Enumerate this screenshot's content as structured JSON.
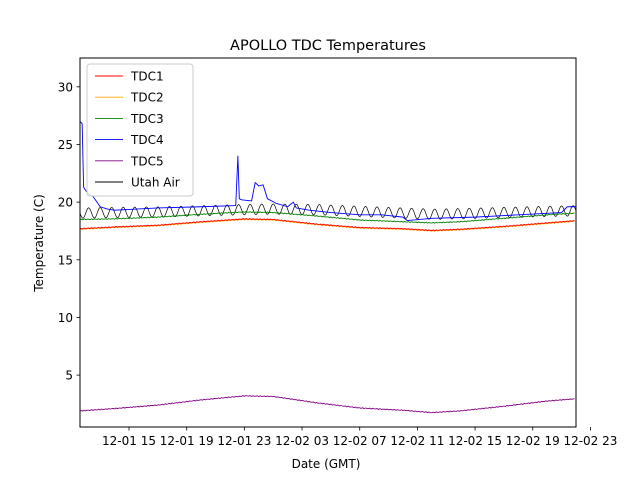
{
  "chart_data": {
    "type": "line",
    "title": "APOLLO TDC Temperatures",
    "xlabel": "Date (GMT)",
    "ylabel": "Temperature (C)",
    "xlim": [
      11.6,
      46.0
    ],
    "ylim": [
      0.5,
      32.5
    ],
    "x_unit": "hours since 2016-12-01 00:00 GMT",
    "x_ticks": [
      {
        "value": 15,
        "label": "12-01 15"
      },
      {
        "value": 19,
        "label": "12-01 19"
      },
      {
        "value": 23,
        "label": "12-01 23"
      },
      {
        "value": 27,
        "label": "12-02 03"
      },
      {
        "value": 31,
        "label": "12-02 07"
      },
      {
        "value": 35,
        "label": "12-02 11"
      },
      {
        "value": 39,
        "label": "12-02 15"
      },
      {
        "value": 43,
        "label": "12-02 19"
      },
      {
        "value": 47,
        "label": "12-02 23"
      }
    ],
    "y_ticks": [
      {
        "value": 5,
        "label": "5"
      },
      {
        "value": 10,
        "label": "10"
      },
      {
        "value": 15,
        "label": "15"
      },
      {
        "value": 20,
        "label": "20"
      },
      {
        "value": 25,
        "label": "25"
      },
      {
        "value": 30,
        "label": "30"
      }
    ],
    "legend_position": "top-left",
    "series": [
      {
        "name": "TDC1",
        "color": "#ff0000",
        "x": [
          11.6,
          14,
          17,
          20,
          23,
          25,
          28,
          31,
          34,
          36,
          38,
          41,
          44,
          46
        ],
        "y": [
          17.7,
          17.85,
          18.0,
          18.3,
          18.55,
          18.5,
          18.1,
          17.8,
          17.7,
          17.55,
          17.65,
          17.9,
          18.2,
          18.4
        ]
      },
      {
        "name": "TDC2",
        "color": "#ffa500",
        "x": [
          11.6,
          14,
          17,
          20,
          23,
          25,
          28,
          31,
          34,
          36,
          38,
          41,
          44,
          46
        ],
        "y": [
          17.65,
          17.8,
          17.95,
          18.25,
          18.5,
          18.45,
          18.05,
          17.75,
          17.65,
          17.5,
          17.6,
          17.85,
          18.15,
          18.35
        ]
      },
      {
        "name": "TDC3",
        "color": "#008000",
        "x": [
          11.6,
          14,
          17,
          20,
          23,
          25,
          28,
          31,
          34,
          36,
          38,
          41,
          44,
          46
        ],
        "y": [
          18.5,
          18.55,
          18.7,
          18.95,
          19.15,
          19.1,
          18.8,
          18.45,
          18.3,
          18.2,
          18.3,
          18.6,
          18.9,
          19.05
        ]
      },
      {
        "name": "TDC4",
        "color": "#0000ff",
        "x": [
          11.6,
          11.75,
          11.85,
          12.0,
          12.2,
          12.5,
          13.0,
          13.5,
          14,
          17,
          20,
          22.4,
          22.55,
          22.65,
          22.8,
          23.5,
          23.75,
          24.0,
          24.3,
          24.6,
          25.2,
          26.0,
          26.4,
          26.6,
          27.5,
          29.0,
          31.0,
          32.5,
          34.0,
          34.3,
          36.0,
          39.0,
          42.0,
          45.0,
          45.4,
          46.0
        ],
        "y": [
          27.0,
          26.8,
          21.3,
          21.0,
          20.7,
          20.5,
          19.6,
          19.4,
          19.3,
          19.5,
          19.6,
          19.7,
          24.0,
          20.3,
          20.2,
          20.1,
          21.7,
          21.4,
          21.5,
          20.3,
          19.9,
          19.6,
          20.0,
          19.5,
          19.3,
          19.1,
          18.9,
          18.9,
          18.7,
          18.4,
          18.6,
          18.7,
          18.9,
          19.1,
          19.6,
          19.6
        ]
      },
      {
        "name": "TDC5",
        "color": "#800080",
        "x": [
          11.6,
          14,
          17,
          20,
          23,
          25,
          28,
          31,
          34,
          36,
          38,
          41,
          44,
          46
        ],
        "y": [
          1.9,
          2.1,
          2.4,
          2.85,
          3.2,
          3.15,
          2.6,
          2.15,
          1.95,
          1.75,
          1.9,
          2.3,
          2.75,
          2.95
        ]
      },
      {
        "name": "Utah Air",
        "color": "#000000",
        "x": [
          11.6,
          14,
          17,
          20,
          23,
          25,
          28,
          31,
          34,
          36,
          38,
          41,
          44,
          46
        ],
        "y": [
          19.05,
          19.1,
          19.15,
          19.25,
          19.35,
          19.4,
          19.35,
          19.2,
          19.05,
          18.95,
          19.0,
          19.1,
          19.2,
          19.25
        ],
        "oscillation_amplitude": 0.45,
        "oscillation_period_hours": 0.8
      }
    ]
  }
}
